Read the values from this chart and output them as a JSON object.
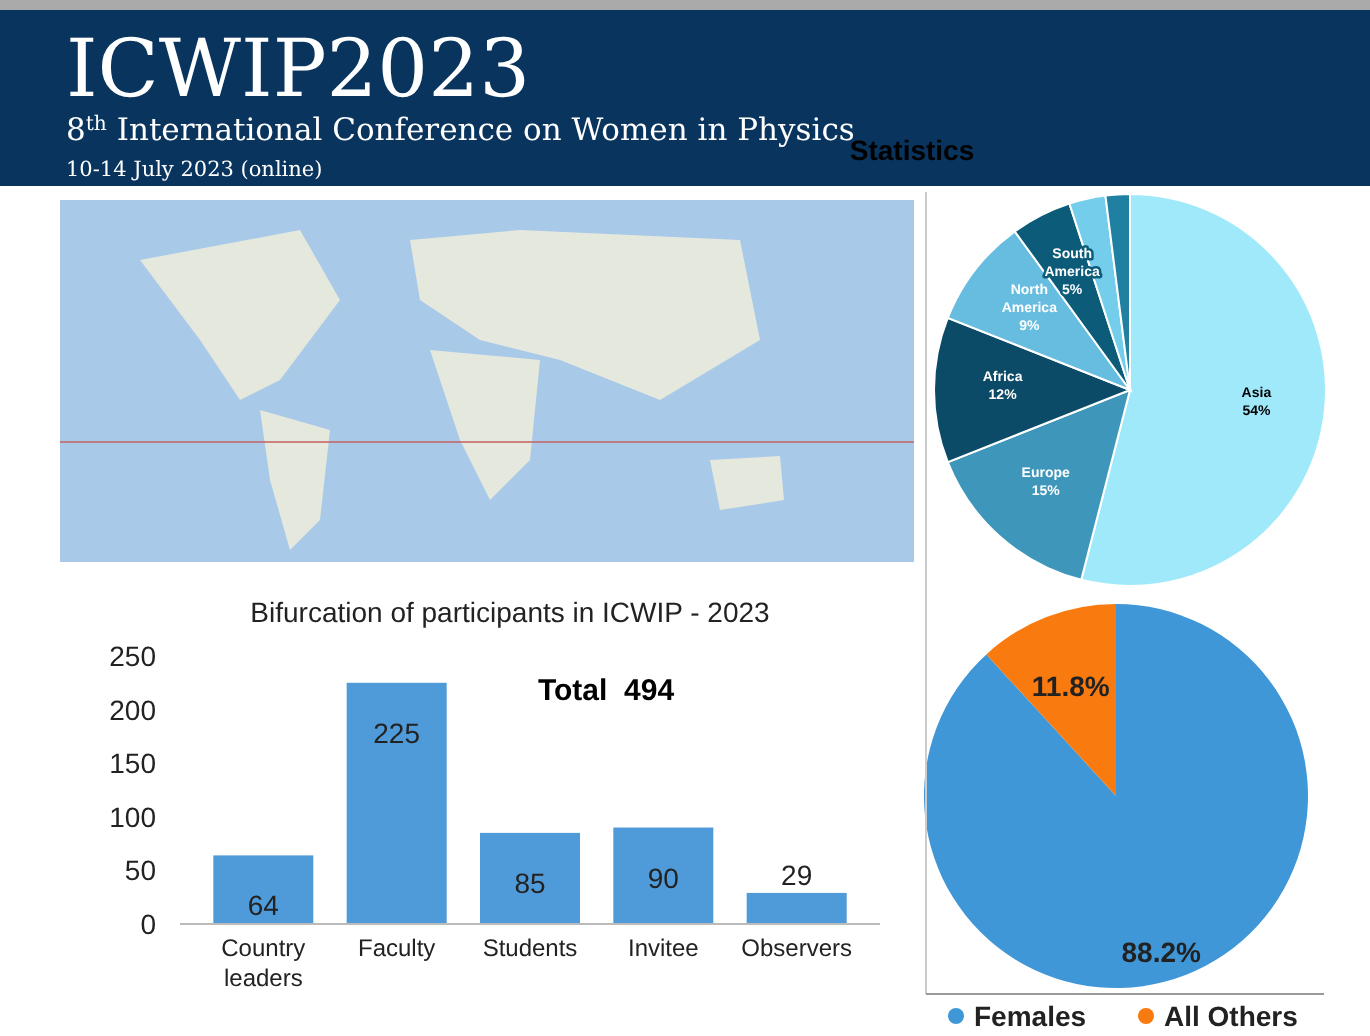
{
  "chart_data": [
    {
      "type": "other",
      "title": "ICWIP2023",
      "subtitle": "8$^{th}$ International Conference on Women in Physics",
      "annotations": [
        "10-14 July 2023 (online)"
      ]
    },
    {
      "type": "pie",
      "title": "Statistics",
      "categories": [
        "Asia",
        "Europe",
        "Africa",
        "North America",
        "South America",
        null,
        null
      ],
      "values": [
        54,
        15,
        12,
        9,
        5,
        3,
        2
      ],
      "value_labels": [
        "54%",
        "15%",
        "12%",
        "9%",
        "5%",
        null,
        null
      ],
      "colors": [
        "#9fe9fb",
        "#3e97ba",
        "#0c4b67",
        "#67bde0",
        "#0b5b79",
        "#74cdea",
        "#1f80a2"
      ]
    },
    {
      "type": "bar",
      "title": "Bifurcation of participants in ICWIP - 2023",
      "categories": [
        "Country leaders",
        "Faculty",
        "Students",
        "Invitee",
        "Observers"
      ],
      "values": [
        64,
        225,
        85,
        90,
        29
      ],
      "color": "#4f9bd9",
      "ylim": [
        0,
        250
      ],
      "yticks": [
        0,
        50,
        100,
        150,
        200,
        250
      ],
      "data_labels": true,
      "grid": false,
      "annotations": [
        "Total  494"
      ]
    },
    {
      "type": "pie",
      "categories": [
        "Females",
        "All Others"
      ],
      "values": [
        88.2,
        11.8
      ],
      "value_labels": [
        "88.2%",
        "11.8%"
      ],
      "colors": [
        "#3f97d8",
        "#f97b0f"
      ],
      "legend": "bottom"
    }
  ]
}
